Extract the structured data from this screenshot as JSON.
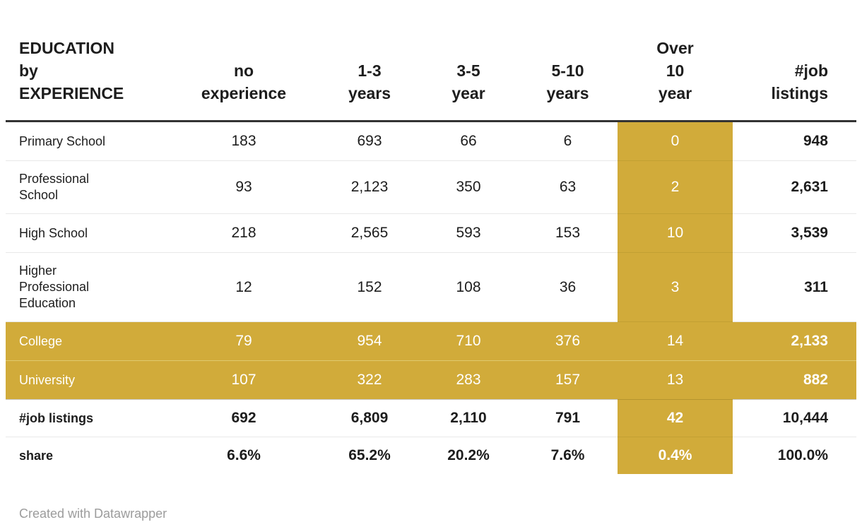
{
  "table": {
    "title": "EDUCATION\nby\nEXPERIENCE",
    "columns": [
      "no\nexperience",
      "1-3\nyears",
      "3-5\nyear",
      "5-10\nyears",
      "Over\n10\nyear",
      "#job\nlistings"
    ],
    "highlight_column_index": 4,
    "rows": [
      {
        "label": "Primary School",
        "values": [
          "183",
          "693",
          "66",
          "6",
          "0",
          "948"
        ],
        "highlight": false
      },
      {
        "label": "Professional\nSchool",
        "values": [
          "93",
          "2,123",
          "350",
          "63",
          "2",
          "2,631"
        ],
        "highlight": false
      },
      {
        "label": "High School",
        "values": [
          "218",
          "2,565",
          "593",
          "153",
          "10",
          "3,539"
        ],
        "highlight": false
      },
      {
        "label": "Higher\nProfessional\nEducation",
        "values": [
          "12",
          "152",
          "108",
          "36",
          "3",
          "311"
        ],
        "highlight": false
      },
      {
        "label": "College",
        "values": [
          "79",
          "954",
          "710",
          "376",
          "14",
          "2,133"
        ],
        "highlight": true
      },
      {
        "label": "University",
        "values": [
          "107",
          "322",
          "283",
          "157",
          "13",
          "882"
        ],
        "highlight": true
      }
    ],
    "summary_rows": [
      {
        "label": "#job listings",
        "values": [
          "692",
          "6,809",
          "2,110",
          "791",
          "42",
          "10,444"
        ]
      },
      {
        "label": "share",
        "values": [
          "6.6%",
          "65.2%",
          "20.2%",
          "7.6%",
          "0.4%",
          "100.0%"
        ]
      }
    ],
    "colors": {
      "highlight_gold": "#d1ab3a",
      "text": "#1d1d1d",
      "header_border": "#333333",
      "row_border": "#e8e8e8",
      "highlight_text": "#ffffff",
      "attribution_text": "#9c9c9c"
    }
  },
  "attribution": "Created with Datawrapper",
  "chart_data": {
    "type": "table",
    "title": "EDUCATION by EXPERIENCE",
    "columns": [
      "no experience",
      "1-3 years",
      "3-5 year",
      "5-10 years",
      "Over 10 year",
      "#job listings"
    ],
    "rows": [
      {
        "education": "Primary School",
        "values": [
          183,
          693,
          66,
          6,
          0,
          948
        ]
      },
      {
        "education": "Professional School",
        "values": [
          93,
          2123,
          350,
          63,
          2,
          2631
        ]
      },
      {
        "education": "High School",
        "values": [
          218,
          2565,
          593,
          153,
          10,
          3539
        ]
      },
      {
        "education": "Higher Professional Education",
        "values": [
          12,
          152,
          108,
          36,
          3,
          311
        ]
      },
      {
        "education": "College",
        "values": [
          79,
          954,
          710,
          376,
          14,
          2133
        ]
      },
      {
        "education": "University",
        "values": [
          107,
          322,
          283,
          157,
          13,
          882
        ]
      }
    ],
    "totals_row": {
      "label": "#job listings",
      "values": [
        692,
        6809,
        2110,
        791,
        42,
        10444
      ]
    },
    "share_row": {
      "label": "share",
      "values": [
        "6.6%",
        "65.2%",
        "20.2%",
        "7.6%",
        "0.4%",
        "100.0%"
      ]
    },
    "highlighted_rows": [
      "College",
      "University"
    ],
    "highlighted_column": "Over 10 year"
  }
}
